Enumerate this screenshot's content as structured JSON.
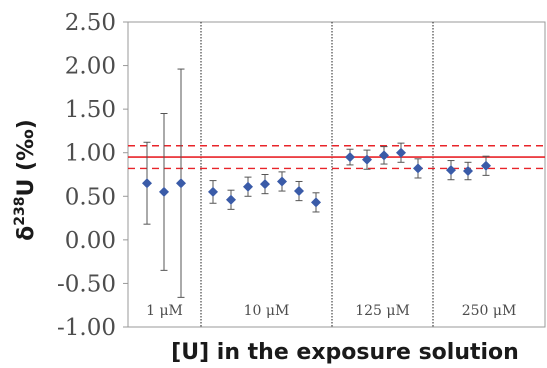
{
  "chart_data": {
    "type": "scatter",
    "xlabel": "[U] in the exposure solution",
    "ylabel_parts": {
      "prefix": "δ",
      "sup": "238",
      "suffix": "U (‰)"
    },
    "ylim": [
      -1.0,
      2.5
    ],
    "y_ticks": [
      "2.50",
      "2.00",
      "1.50",
      "1.00",
      "0.50",
      "0.00",
      "-0.50",
      "-1.00"
    ],
    "y_tick_values": [
      2.5,
      2.0,
      1.5,
      1.0,
      0.5,
      0.0,
      -0.5,
      -1.0
    ],
    "grid": false,
    "groups": [
      {
        "label": "1 μM",
        "points": [
          {
            "y": 0.65,
            "err": 0.47
          },
          {
            "y": 0.55,
            "err": 0.9
          },
          {
            "y": 0.65,
            "err": 1.31
          }
        ]
      },
      {
        "label": "10 μM",
        "points": [
          {
            "y": 0.55,
            "err": 0.13
          },
          {
            "y": 0.46,
            "err": 0.11
          },
          {
            "y": 0.61,
            "err": 0.11
          },
          {
            "y": 0.64,
            "err": 0.11
          },
          {
            "y": 0.67,
            "err": 0.11
          },
          {
            "y": 0.56,
            "err": 0.11
          },
          {
            "y": 0.43,
            "err": 0.11
          }
        ]
      },
      {
        "label": "125 μM",
        "points": [
          {
            "y": 0.95,
            "err": 0.09
          },
          {
            "y": 0.92,
            "err": 0.11
          },
          {
            "y": 0.97,
            "err": 0.1
          },
          {
            "y": 1.0,
            "err": 0.11
          },
          {
            "y": 0.82,
            "err": 0.11
          }
        ]
      },
      {
        "label": "250 μM",
        "points": [
          {
            "y": 0.8,
            "err": 0.11
          },
          {
            "y": 0.79,
            "err": 0.1
          },
          {
            "y": 0.85,
            "err": 0.11
          }
        ]
      }
    ],
    "reference_lines": [
      {
        "y": 0.95,
        "style": "solid"
      },
      {
        "y": 1.08,
        "style": "dashed"
      },
      {
        "y": 0.82,
        "style": "dashed"
      }
    ],
    "colors": {
      "marker": "#3a5ba8",
      "reference": "#e8242a",
      "errorbar": "#555555",
      "axis": "#999999",
      "separator": "#222222"
    }
  }
}
